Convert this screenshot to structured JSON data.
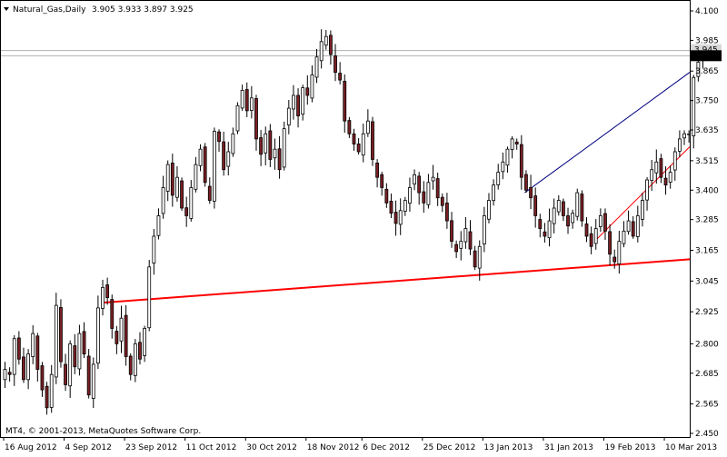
{
  "header": {
    "symbol_label": "Natural_Gas,Daily",
    "ohlc_label": "3.905 3.933 3.897 3.925",
    "menu_icon": "triangle-down-icon"
  },
  "footer": {
    "copyright": "MT4, © 2001-2013, MetaQuotes Software Corp."
  },
  "colors": {
    "background": "#ffffff",
    "candle_bull": "#ffffff",
    "candle_bear": "#7a1f24",
    "candle_outline": "#000000",
    "support_line": "#ff0000",
    "upper_channel": "#000080",
    "lower_channel": "#ff0000",
    "level_line": "#b0b0b0",
    "price_tag_bg": "#000000",
    "price_tag_fg": "#ffffff"
  },
  "chart_data": {
    "type": "candlestick",
    "ylim": [
      2.42,
      4.12
    ],
    "y_ticks": [
      "4.100",
      "3.985",
      "3.865",
      "3.750",
      "3.635",
      "3.515",
      "3.400",
      "3.285",
      "3.165",
      "3.045",
      "2.925",
      "2.800",
      "2.685",
      "2.565",
      "2.450"
    ],
    "y_tick_values": [
      4.1,
      3.985,
      3.865,
      3.75,
      3.635,
      3.515,
      3.4,
      3.285,
      3.165,
      3.045,
      2.925,
      2.8,
      2.685,
      2.565,
      2.45
    ],
    "x_labels": [
      "16 Aug 2012",
      "4 Sep 2012",
      "23 Sep 2012",
      "11 Oct 2012",
      "30 Oct 2012",
      "18 Nov 2012",
      "6 Dec 2012",
      "25 Dec 2012",
      "13 Jan 2013",
      "31 Jan 2013",
      "19 Feb 2013",
      "10 Mar 2013"
    ],
    "x_label_bar": [
      0,
      13,
      26,
      39,
      52,
      65,
      77,
      90,
      103,
      116,
      129,
      142
    ],
    "current_price": 3.925,
    "current_price_label": "3.925",
    "upper_tag_label": "3.945",
    "levels": [
      3.945,
      3.925
    ],
    "closes": [
      2.7,
      2.68,
      2.82,
      2.74,
      2.66,
      2.76,
      2.84,
      2.7,
      2.62,
      2.55,
      2.68,
      2.95,
      2.73,
      2.64,
      2.8,
      2.71,
      2.84,
      2.76,
      2.6,
      2.72,
      2.94,
      3.02,
      2.98,
      2.86,
      2.8,
      2.9,
      2.75,
      2.68,
      2.8,
      2.74,
      2.86,
      3.1,
      3.22,
      3.3,
      3.41,
      3.5,
      3.38,
      3.45,
      3.33,
      3.3,
      3.41,
      3.5,
      3.56,
      3.43,
      3.36,
      3.63,
      3.59,
      3.48,
      3.55,
      3.62,
      3.73,
      3.79,
      3.71,
      3.76,
      3.6,
      3.54,
      3.62,
      3.52,
      3.56,
      3.48,
      3.64,
      3.72,
      3.77,
      3.69,
      3.8,
      3.77,
      3.85,
      3.92,
      3.98,
      4.0,
      3.93,
      3.86,
      3.83,
      3.67,
      3.62,
      3.58,
      3.55,
      3.62,
      3.67,
      3.52,
      3.45,
      3.41,
      3.35,
      3.31,
      3.27,
      3.32,
      3.36,
      3.41,
      3.46,
      3.39,
      3.35,
      3.43,
      3.45,
      3.37,
      3.34,
      3.28,
      3.2,
      3.16,
      3.2,
      3.25,
      3.17,
      3.1,
      3.18,
      3.3,
      3.36,
      3.42,
      3.47,
      3.51,
      3.56,
      3.6,
      3.58,
      3.45,
      3.4,
      3.37,
      3.3,
      3.25,
      3.22,
      3.28,
      3.33,
      3.36,
      3.3,
      3.26,
      3.31,
      3.39,
      3.28,
      3.22,
      3.18,
      3.25,
      3.3,
      3.24,
      3.15,
      3.12,
      3.2,
      3.24,
      3.28,
      3.22,
      3.3,
      3.36,
      3.44,
      3.48,
      3.51,
      3.45,
      3.42,
      3.47,
      3.55,
      3.6,
      3.62,
      3.62,
      3.84,
      3.9,
      3.925
    ]
  }
}
